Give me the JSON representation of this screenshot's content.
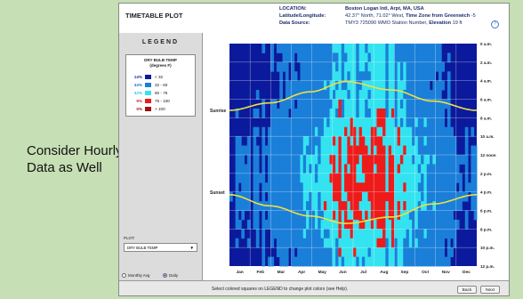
{
  "slide_caption": "Consider Hourly Data as Well",
  "header": {
    "title": "TIMETABLE PLOT",
    "location_label": "LOCATION:",
    "location_value": "Boston Logan Intl, Arpt, MA, USA",
    "latlon_label": "Latitude/Longitude:",
    "latlon_value": "42.37° North, 71.02° West,",
    "timezone_label": "Time Zone from Greenwich",
    "timezone_value": "-5",
    "source_label": "Data Source:",
    "source_value": "TMY3     725090 WMO Station Number,",
    "elevation_label": "Elevation",
    "elevation_value": "19 ft",
    "help_icon": "help-icon"
  },
  "legend": {
    "title": "LEGEND",
    "heading_line1": "DRY BULB TEMP",
    "heading_line2": "(degrees F)",
    "items": [
      {
        "pct": "14%",
        "range": "< 32",
        "color": "#0b1a9c",
        "pct_color": "#1a2aa8"
      },
      {
        "pct": "44%",
        "range": "32  -  60",
        "color": "#1a7fd9",
        "pct_color": "#1a6fd0"
      },
      {
        "pct": "32%",
        "range": "60  -  75",
        "color": "#33e3f0",
        "pct_color": "#22c8e0"
      },
      {
        "pct": "9%",
        "range": "75  -  100",
        "color": "#ee1b1b",
        "pct_color": "#e02020"
      },
      {
        "pct": "0%",
        "range": "> 100",
        "color": "#9e1010",
        "pct_color": "#8e1010"
      }
    ]
  },
  "controls": {
    "plot_label": "PLOT:",
    "plot_selected": "DRY BULB TEMP",
    "monthly_label": "Monthly Avg",
    "daily_label": "Daily",
    "selected": "daily"
  },
  "footer": {
    "message": "Select colored squares on LEGEND to change plot colors (see Help).",
    "back": "Back",
    "next": "Next"
  },
  "chart_data": {
    "type": "heatmap",
    "title": "",
    "x_tick_labels": [
      "Jan",
      "Feb",
      "Mar",
      "Apr",
      "May",
      "Jun",
      "Jul",
      "Aug",
      "Sep",
      "Oct",
      "Nov",
      "Dec"
    ],
    "y_tick_labels": [
      "0 a.m.",
      "2 a.m.",
      "4 a.m.",
      "6 a.m.",
      "8 a.m.",
      "10 a.m.",
      "12 noon",
      "2 p.m.",
      "4 p.m.",
      "6 p.m.",
      "8 p.m.",
      "10 p.m.",
      "12 p.m."
    ],
    "y_range_hours": [
      0,
      24
    ],
    "series_labels": {
      "sunrise": "Sunrise",
      "sunset": "Sunset"
    },
    "sunrise_hour": {
      "day": [
        1,
        60,
        120,
        172,
        240,
        300,
        365
      ],
      "hour": [
        7.2,
        6.4,
        5.2,
        4.1,
        5.0,
        6.2,
        7.2
      ]
    },
    "sunset_hour": {
      "day": [
        1,
        60,
        120,
        172,
        240,
        300,
        365
      ],
      "hour": [
        16.3,
        17.5,
        18.6,
        19.4,
        18.7,
        17.3,
        16.3
      ]
    },
    "curve_color": "#f0e040",
    "grid": true
  }
}
